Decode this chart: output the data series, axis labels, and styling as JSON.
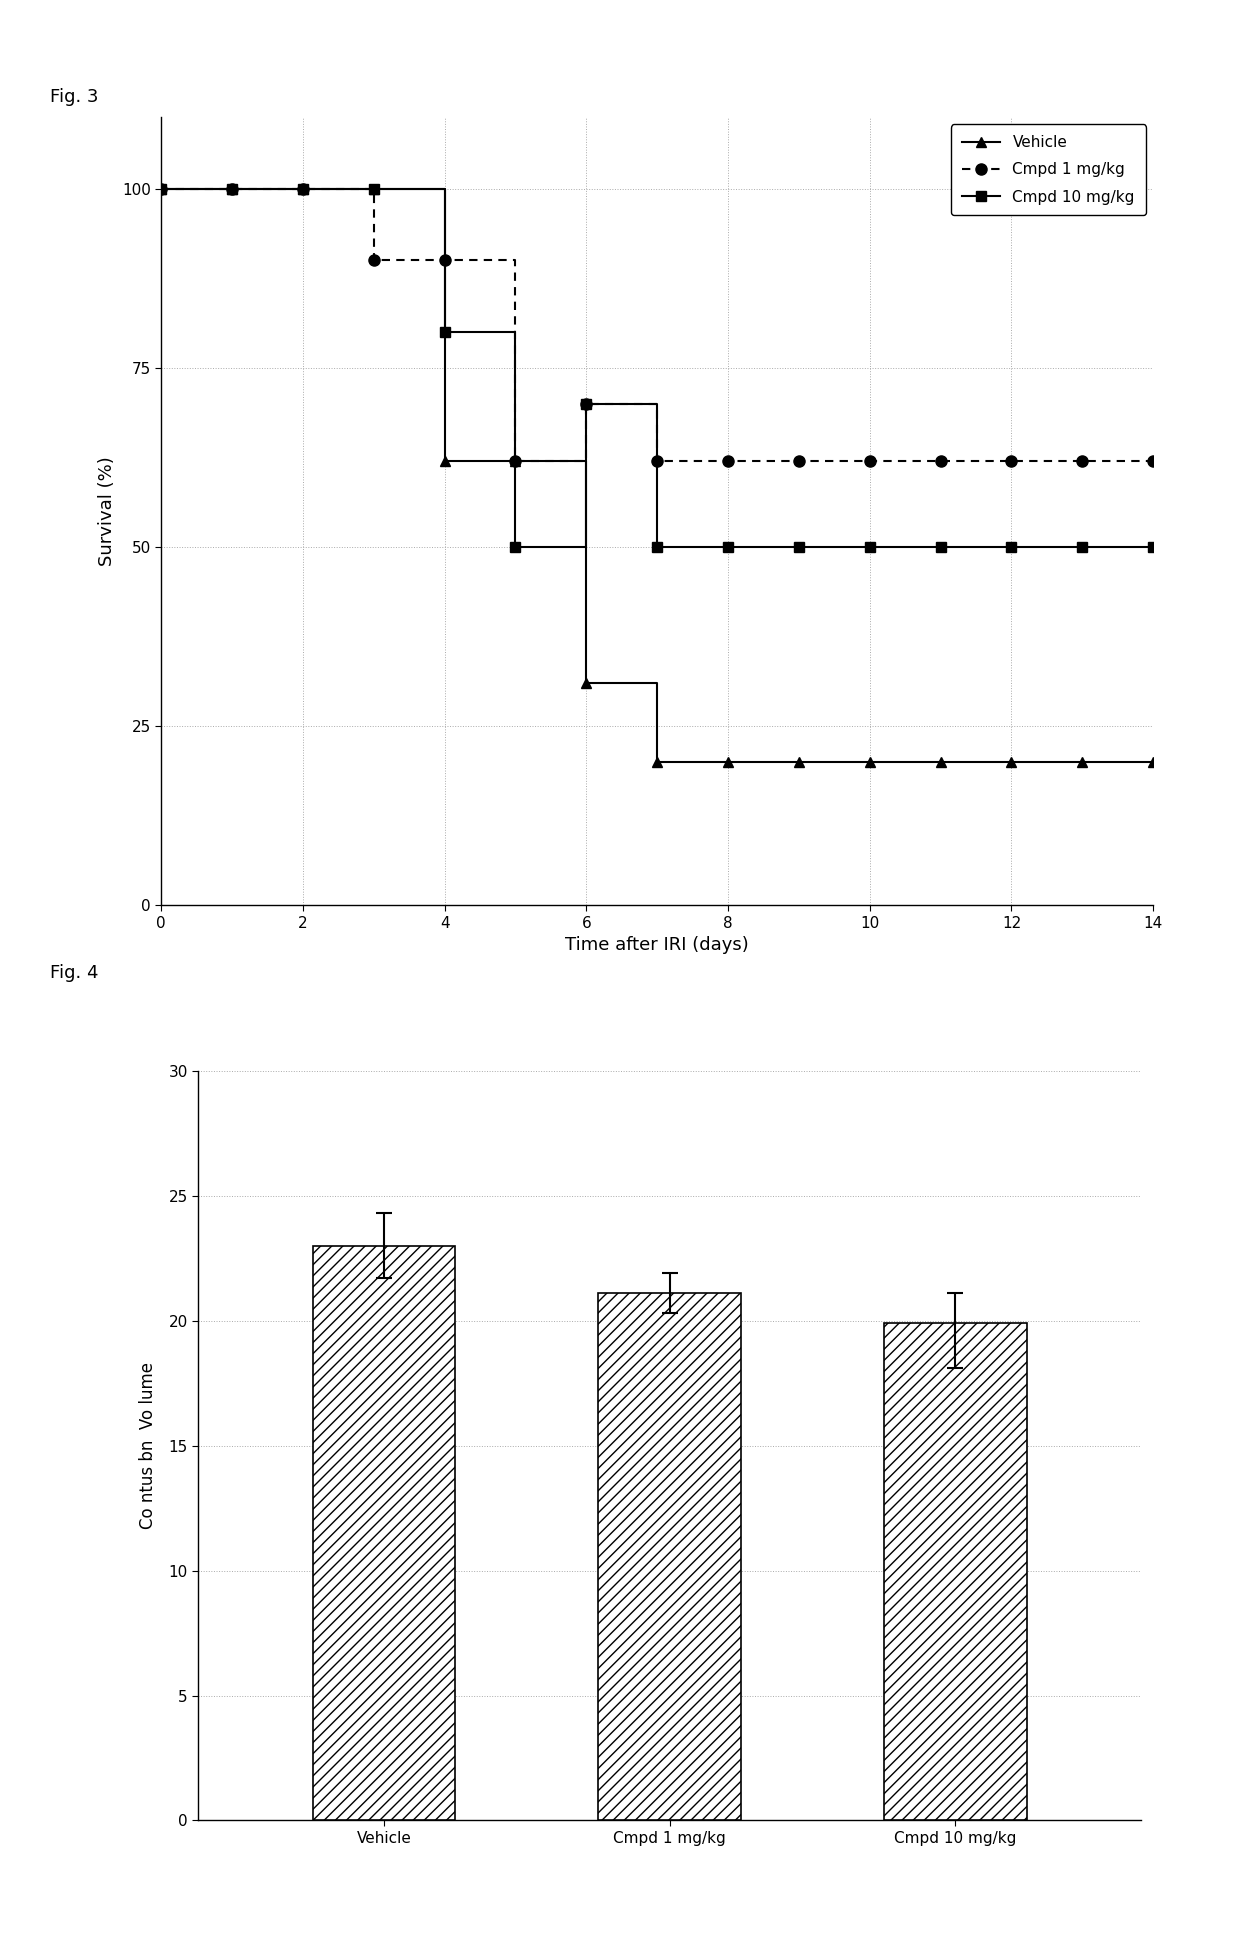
{
  "fig3_title": "Fig. 3",
  "fig4_title": "Fig. 4",
  "vehicle_x": [
    0,
    1,
    2,
    3,
    4,
    5,
    6,
    7,
    8,
    9,
    10,
    11,
    12,
    13,
    14
  ],
  "vehicle_y": [
    100,
    100,
    100,
    100,
    62,
    62,
    31,
    20,
    20,
    20,
    20,
    20,
    20,
    20,
    20
  ],
  "cmpd1_x": [
    0,
    1,
    2,
    3,
    4,
    5,
    6,
    7,
    8,
    9,
    10,
    11,
    12,
    13,
    14
  ],
  "cmpd1_y": [
    100,
    100,
    100,
    90,
    90,
    62,
    70,
    62,
    62,
    62,
    62,
    62,
    62,
    62,
    62
  ],
  "cmpd10_x": [
    0,
    1,
    2,
    3,
    4,
    5,
    6,
    7,
    8,
    9,
    10,
    11,
    12,
    13,
    14
  ],
  "cmpd10_y": [
    100,
    100,
    100,
    100,
    80,
    50,
    70,
    50,
    50,
    50,
    50,
    50,
    50,
    50,
    50
  ],
  "fig3_xlabel": "Time after IRI (days)",
  "fig3_ylabel": "Survival (%)",
  "fig3_xlim": [
    0,
    14
  ],
  "fig3_ylim": [
    0,
    110
  ],
  "fig3_xticks": [
    0,
    2,
    4,
    6,
    8,
    10,
    12,
    14
  ],
  "fig3_yticks": [
    0,
    25,
    50,
    75,
    100
  ],
  "bar_categories": [
    "Vehicle",
    "Cmpd 1 mg/kg",
    "Cmpd 10 mg/kg"
  ],
  "bar_values": [
    23.0,
    21.1,
    19.9
  ],
  "bar_errors_upper": [
    1.3,
    0.8,
    1.2
  ],
  "bar_errors_lower": [
    1.3,
    0.8,
    1.8
  ],
  "fig4_ylabel": "Co ntus bn  Vo lume",
  "fig4_ylim": [
    0,
    30
  ],
  "fig4_yticks": [
    0,
    5,
    10,
    15,
    20,
    25,
    30
  ],
  "legend_vehicle": "Vehicle",
  "legend_cmpd1": "Cmpd 1 mg/kg",
  "legend_cmpd10": "Cmpd 10 mg/kg",
  "line_color": "#000000",
  "bg_color": "#ffffff",
  "grid_color": "#aaaaaa"
}
